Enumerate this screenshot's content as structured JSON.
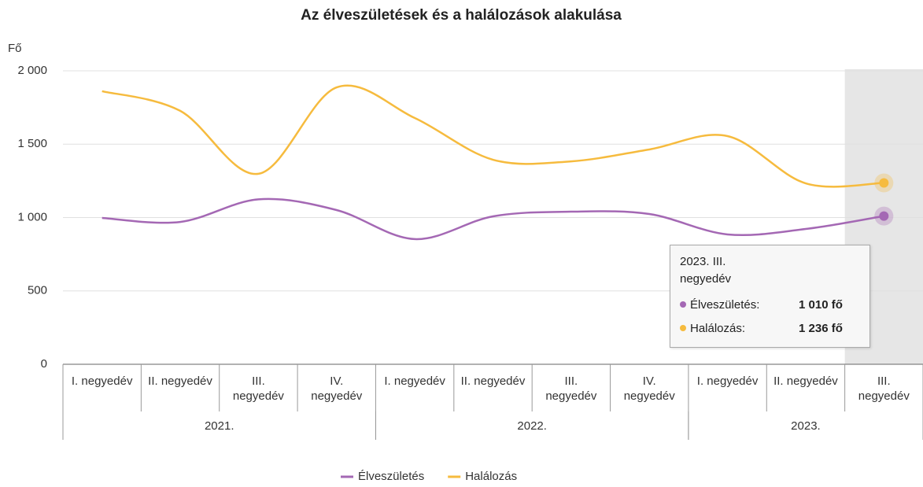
{
  "chart_data": {
    "type": "line",
    "title": "Az élveszületések és a halálozások alakulása",
    "y_axis_label": "Fő",
    "categories": [
      "I. negyedév",
      "II. negyedév",
      "III. negyedév",
      "IV. negyedév",
      "I. negyedév",
      "II. negyedév",
      "III. negyedév",
      "IV. negyedév",
      "I. negyedév",
      "II. negyedév",
      "III. negyedév"
    ],
    "groups": [
      {
        "label": "2021.",
        "span": 4
      },
      {
        "label": "2022.",
        "span": 4
      },
      {
        "label": "2023.",
        "span": 3
      }
    ],
    "series": [
      {
        "name": "Élveszületés",
        "color": "#a468b4",
        "values": [
          997,
          970,
          1124,
          1051,
          853,
          1008,
          1040,
          1024,
          885,
          922,
          1010
        ]
      },
      {
        "name": "Halálozás",
        "color": "#f6bb3e",
        "values": [
          1861,
          1727,
          1298,
          1887,
          1678,
          1394,
          1383,
          1464,
          1555,
          1233,
          1236
        ]
      }
    ],
    "ylim": [
      0,
      2000
    ],
    "yticks": [
      0,
      500,
      {
        "value": 1000,
        "label": "1 000"
      },
      {
        "value": 1500,
        "label": "1 500"
      },
      {
        "value": 2000,
        "label": "2 000"
      }
    ],
    "grid": true,
    "highlight_index": 10,
    "tooltip": {
      "title": "2023. III. negyedév",
      "items": [
        {
          "name": "Élveszületés:",
          "value_label": "1 010 fő"
        },
        {
          "name": "Halálozás:",
          "value_label": "1 236 fő"
        }
      ]
    },
    "legend": "bottom"
  }
}
